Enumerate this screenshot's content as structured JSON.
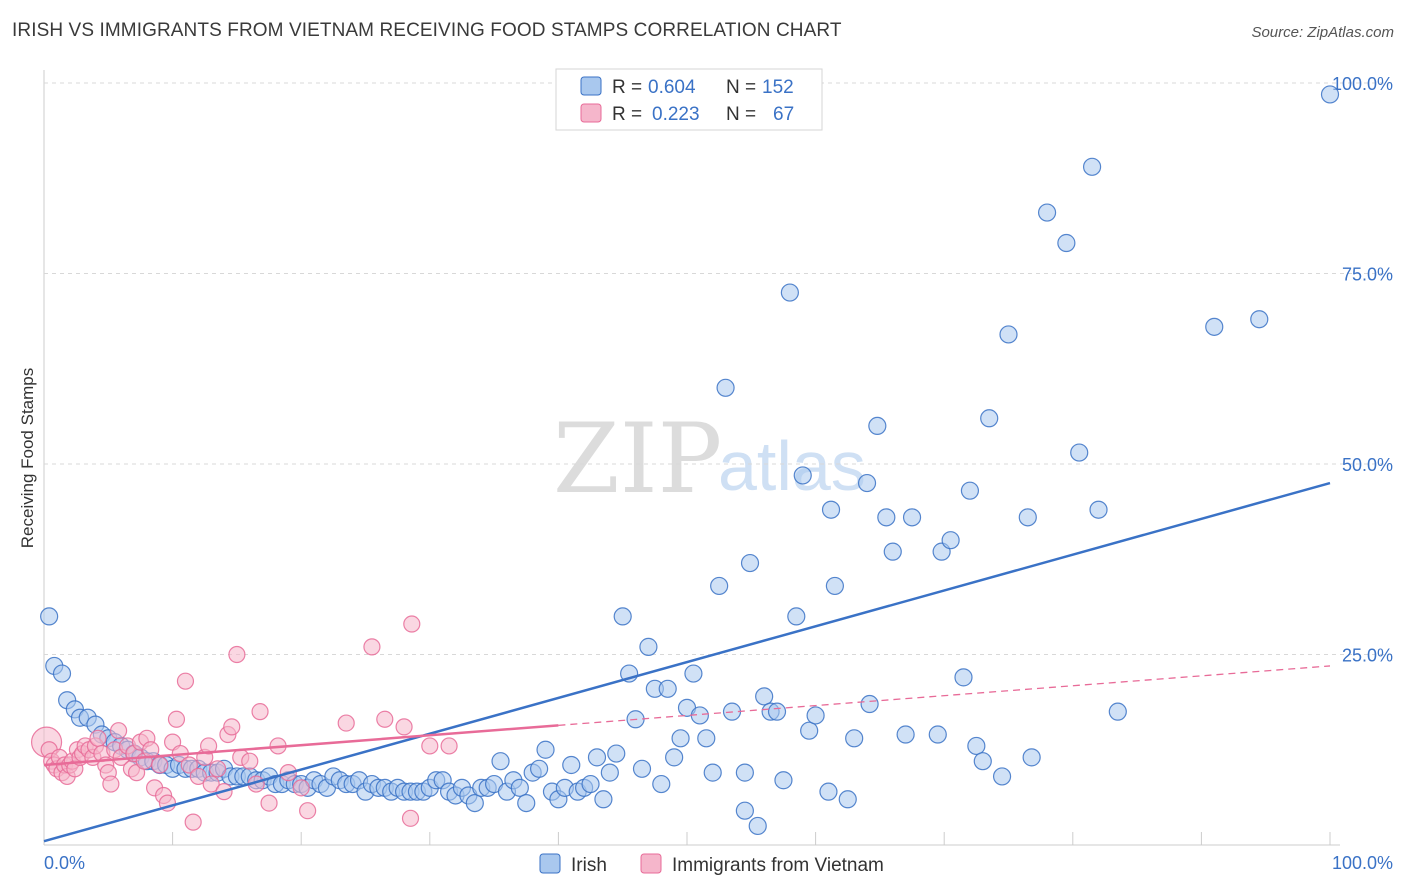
{
  "title": "IRISH VS IMMIGRANTS FROM VIETNAM RECEIVING FOOD STAMPS CORRELATION CHART",
  "source": "Source: ZipAtlas.com",
  "watermark": {
    "zip": "ZIP",
    "atlas": "atlas"
  },
  "colors": {
    "blue": "#3a72c6",
    "blue_fill": "#a9c8ee",
    "pink": "#e86b98",
    "pink_fill": "#f5b6cb",
    "grid": "#d8d8d8"
  },
  "legend": {
    "rows": [
      {
        "r_label": "R =",
        "r_value": "0.604",
        "n_label": "N =",
        "n_value": "152"
      },
      {
        "r_label": "R =",
        "r_value": "0.223",
        "n_label": "N =",
        "n_value": "67"
      }
    ]
  },
  "chart_data": {
    "type": "scatter",
    "title": "IRISH VS IMMIGRANTS FROM VIETNAM RECEIVING FOOD STAMPS CORRELATION CHART",
    "xlabel": "",
    "ylabel": "Receiving Food Stamps",
    "xlim": [
      0,
      100
    ],
    "ylim": [
      0,
      100
    ],
    "x_tick_labels": [
      "0.0%",
      "100.0%"
    ],
    "y_tick_labels": [
      {
        "value": 100,
        "label": "100.0%"
      },
      {
        "value": 75,
        "label": "75.0%"
      },
      {
        "value": 50,
        "label": "50.0%"
      },
      {
        "value": 25,
        "label": "25.0%"
      }
    ],
    "legend_position": "bottom-center",
    "series": [
      {
        "name": "Irish",
        "r": 0.604,
        "n": 152,
        "trend": {
          "x0": 0,
          "y0": 0.5,
          "x1": 100,
          "y1": 47.5,
          "dash_from": null
        },
        "points": [
          [
            0.4,
            30
          ],
          [
            0.8,
            23.5
          ],
          [
            1.4,
            22.5
          ],
          [
            1.8,
            19
          ],
          [
            2.4,
            17.8
          ],
          [
            2.8,
            16.7
          ],
          [
            3.4,
            16.7
          ],
          [
            4.0,
            15.8
          ],
          [
            4.5,
            14.5
          ],
          [
            5.0,
            14.0
          ],
          [
            5.5,
            13.5
          ],
          [
            6.0,
            13.0
          ],
          [
            6.5,
            12.5
          ],
          [
            7.0,
            12.0
          ],
          [
            7.5,
            11.5
          ],
          [
            8.0,
            11.0
          ],
          [
            8.5,
            11.0
          ],
          [
            9.0,
            10.5
          ],
          [
            9.5,
            10.5
          ],
          [
            10.0,
            10.0
          ],
          [
            10.5,
            10.5
          ],
          [
            11.0,
            10.0
          ],
          [
            11.5,
            10.0
          ],
          [
            12.0,
            10.0
          ],
          [
            12.5,
            9.5
          ],
          [
            13.0,
            9.5
          ],
          [
            13.5,
            9.5
          ],
          [
            14.0,
            10.0
          ],
          [
            14.5,
            9.0
          ],
          [
            15.0,
            9.0
          ],
          [
            15.5,
            9.0
          ],
          [
            16.0,
            9.0
          ],
          [
            16.5,
            8.5
          ],
          [
            17.0,
            8.5
          ],
          [
            17.5,
            9.0
          ],
          [
            18.0,
            8.0
          ],
          [
            18.5,
            8.0
          ],
          [
            19.0,
            8.5
          ],
          [
            19.5,
            8.0
          ],
          [
            20.0,
            8.0
          ],
          [
            20.5,
            7.5
          ],
          [
            21.0,
            8.5
          ],
          [
            21.5,
            8.0
          ],
          [
            22.0,
            7.5
          ],
          [
            22.5,
            9.0
          ],
          [
            23.0,
            8.5
          ],
          [
            23.5,
            8.0
          ],
          [
            24.0,
            8.0
          ],
          [
            24.5,
            8.5
          ],
          [
            25.0,
            7.0
          ],
          [
            25.5,
            8.0
          ],
          [
            26.0,
            7.5
          ],
          [
            26.5,
            7.5
          ],
          [
            27.0,
            7.0
          ],
          [
            27.5,
            7.5
          ],
          [
            28.0,
            7.0
          ],
          [
            28.5,
            7.0
          ],
          [
            29.0,
            7.0
          ],
          [
            29.5,
            7.0
          ],
          [
            30.0,
            7.5
          ],
          [
            30.5,
            8.5
          ],
          [
            31.0,
            8.5
          ],
          [
            31.5,
            7.0
          ],
          [
            32.0,
            6.5
          ],
          [
            32.5,
            7.5
          ],
          [
            33.0,
            6.5
          ],
          [
            33.5,
            5.5
          ],
          [
            34.0,
            7.5
          ],
          [
            34.5,
            7.5
          ],
          [
            35.0,
            8.0
          ],
          [
            35.5,
            11.0
          ],
          [
            36.0,
            7.0
          ],
          [
            36.5,
            8.5
          ],
          [
            37.0,
            7.5
          ],
          [
            37.5,
            5.5
          ],
          [
            38.0,
            9.5
          ],
          [
            38.5,
            10.0
          ],
          [
            39.0,
            12.5
          ],
          [
            39.5,
            7.0
          ],
          [
            40.0,
            6.0
          ],
          [
            40.5,
            7.5
          ],
          [
            41.0,
            10.5
          ],
          [
            41.5,
            7.0
          ],
          [
            42.0,
            7.5
          ],
          [
            42.5,
            8.0
          ],
          [
            43.0,
            11.5
          ],
          [
            43.5,
            6.0
          ],
          [
            44.0,
            9.5
          ],
          [
            44.5,
            12.0
          ],
          [
            45.0,
            30.0
          ],
          [
            45.5,
            22.5
          ],
          [
            46.0,
            16.5
          ],
          [
            46.5,
            10.0
          ],
          [
            47.0,
            26.0
          ],
          [
            47.5,
            20.5
          ],
          [
            48.0,
            8.0
          ],
          [
            48.5,
            20.5
          ],
          [
            49.0,
            11.5
          ],
          [
            49.5,
            14.0
          ],
          [
            50.0,
            18.0
          ],
          [
            50.5,
            22.5
          ],
          [
            51.0,
            17.0
          ],
          [
            51.5,
            14.0
          ],
          [
            52.0,
            9.5
          ],
          [
            52.5,
            34.0
          ],
          [
            53.0,
            60.0
          ],
          [
            53.5,
            17.5
          ],
          [
            54.5,
            9.5
          ],
          [
            54.5,
            4.5
          ],
          [
            54.9,
            37.0
          ],
          [
            55.5,
            2.5
          ],
          [
            56.0,
            19.5
          ],
          [
            56.5,
            17.5
          ],
          [
            57.0,
            17.5
          ],
          [
            57.5,
            8.5
          ],
          [
            58.0,
            72.5
          ],
          [
            58.5,
            30.0
          ],
          [
            59.0,
            48.5
          ],
          [
            59.5,
            15.0
          ],
          [
            60.0,
            17.0
          ],
          [
            61.0,
            7.0
          ],
          [
            61.2,
            44.0
          ],
          [
            61.5,
            34.0
          ],
          [
            62.5,
            6.0
          ],
          [
            63.0,
            14.0
          ],
          [
            64.0,
            47.5
          ],
          [
            64.2,
            18.5
          ],
          [
            64.8,
            55.0
          ],
          [
            65.5,
            43.0
          ],
          [
            66.0,
            38.5
          ],
          [
            67.0,
            14.5
          ],
          [
            67.5,
            43.0
          ],
          [
            69.5,
            14.5
          ],
          [
            69.8,
            38.5
          ],
          [
            70.5,
            40.0
          ],
          [
            71.5,
            22.0
          ],
          [
            72.0,
            46.5
          ],
          [
            72.5,
            13.0
          ],
          [
            73.0,
            11.0
          ],
          [
            73.5,
            56.0
          ],
          [
            74.5,
            9.0
          ],
          [
            75.0,
            67.0
          ],
          [
            76.5,
            43.0
          ],
          [
            76.8,
            11.5
          ],
          [
            78.0,
            83.0
          ],
          [
            79.5,
            79.0
          ],
          [
            80.5,
            51.5
          ],
          [
            81.5,
            89.0
          ],
          [
            82.0,
            44.0
          ],
          [
            83.5,
            17.5
          ],
          [
            91.0,
            68.0
          ],
          [
            94.5,
            69.0
          ],
          [
            100,
            98.5
          ]
        ]
      },
      {
        "name": "Immigrants from Vietnam",
        "r": 0.223,
        "n": 67,
        "trend": {
          "x0": 0,
          "y0": 10.5,
          "x1": 100,
          "y1": 23.5,
          "dash_from": 40
        },
        "points": [
          [
            0.2,
            13.5
          ],
          [
            0.4,
            12.5
          ],
          [
            0.6,
            11.0
          ],
          [
            0.8,
            10.5
          ],
          [
            1.0,
            10.0
          ],
          [
            1.2,
            11.5
          ],
          [
            1.4,
            9.5
          ],
          [
            1.6,
            10.5
          ],
          [
            1.8,
            9.0
          ],
          [
            2.0,
            10.5
          ],
          [
            2.2,
            11.0
          ],
          [
            2.4,
            10.0
          ],
          [
            2.6,
            12.5
          ],
          [
            2.8,
            11.5
          ],
          [
            3.0,
            12.0
          ],
          [
            3.2,
            13.0
          ],
          [
            3.5,
            12.5
          ],
          [
            3.8,
            11.5
          ],
          [
            4.0,
            13.0
          ],
          [
            4.2,
            14.0
          ],
          [
            4.5,
            12.0
          ],
          [
            4.8,
            10.5
          ],
          [
            5.0,
            9.5
          ],
          [
            5.2,
            8.0
          ],
          [
            5.5,
            12.5
          ],
          [
            5.8,
            15.0
          ],
          [
            6.0,
            11.5
          ],
          [
            6.5,
            13.0
          ],
          [
            6.8,
            10.0
          ],
          [
            7.0,
            12.0
          ],
          [
            7.2,
            9.5
          ],
          [
            7.5,
            13.5
          ],
          [
            7.8,
            11.0
          ],
          [
            8.0,
            14.0
          ],
          [
            8.3,
            12.5
          ],
          [
            8.6,
            7.5
          ],
          [
            9.0,
            10.5
          ],
          [
            9.3,
            6.5
          ],
          [
            9.6,
            5.5
          ],
          [
            10.0,
            13.5
          ],
          [
            10.3,
            16.5
          ],
          [
            10.6,
            12.0
          ],
          [
            11.0,
            21.5
          ],
          [
            11.3,
            10.5
          ],
          [
            11.6,
            3.0
          ],
          [
            12.0,
            9.0
          ],
          [
            12.5,
            11.5
          ],
          [
            12.8,
            13.0
          ],
          [
            13.0,
            8.0
          ],
          [
            13.5,
            10.0
          ],
          [
            14.0,
            7.0
          ],
          [
            14.3,
            14.5
          ],
          [
            14.6,
            15.5
          ],
          [
            15.0,
            25.0
          ],
          [
            15.3,
            11.5
          ],
          [
            16.0,
            11.0
          ],
          [
            16.5,
            8.0
          ],
          [
            16.8,
            17.5
          ],
          [
            17.5,
            5.5
          ],
          [
            18.2,
            13.0
          ],
          [
            19.0,
            9.5
          ],
          [
            20.0,
            7.5
          ],
          [
            20.5,
            4.5
          ],
          [
            23.5,
            16.0
          ],
          [
            25.5,
            26.0
          ],
          [
            26.5,
            16.5
          ],
          [
            28.0,
            15.5
          ],
          [
            28.5,
            3.5
          ],
          [
            28.6,
            29.0
          ],
          [
            30.0,
            13.0
          ],
          [
            31.5,
            13.0
          ]
        ]
      }
    ]
  },
  "bottom_legend": [
    {
      "label": "Irish"
    },
    {
      "label": "Immigrants from Vietnam"
    }
  ]
}
